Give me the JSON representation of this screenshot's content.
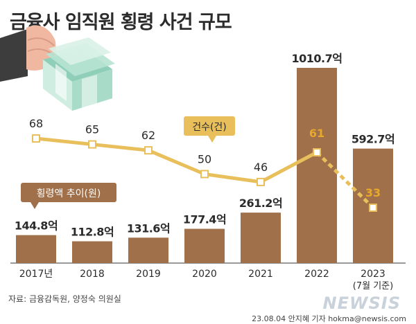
{
  "header": {
    "title": "금융사 임직원 횡령 사건 규모"
  },
  "footer": {
    "source": "자료: 금융감독원, 양정숙 의원실",
    "credit": "23.08.04 안지혜 기자 hokma@newsis.com",
    "watermark": "NEWSIS"
  },
  "colors": {
    "bar": "#a0704a",
    "line": "#e8bf5a",
    "highlight": "#e8a82a",
    "text": "#2b2b2b"
  },
  "chart_data": {
    "type": "bar",
    "categories": [
      "2017년",
      "2018",
      "2019",
      "2020",
      "2021",
      "2022",
      "2023"
    ],
    "category_sublabels": [
      "",
      "",
      "",
      "",
      "",
      "",
      "(7월 기준)"
    ],
    "series": [
      {
        "name": "횡령액 추이(원)",
        "values": [
          144.8,
          112.8,
          131.6,
          177.4,
          261.2,
          1010.7,
          592.7
        ],
        "labels": [
          "144.8억",
          "112.8억",
          "131.6억",
          "177.4억",
          "261.2억",
          "1010.7억",
          "592.7억"
        ]
      },
      {
        "name": "건수(건)",
        "type": "line",
        "values": [
          68,
          65,
          62,
          50,
          46,
          61,
          33
        ],
        "labels": [
          "68",
          "65",
          "62",
          "50",
          "46",
          "61",
          "33"
        ],
        "dashed_last_segment": true
      }
    ],
    "title": "금융사 임직원 횡령 사건 규모",
    "legend": [
      "횡령액 추이(원)",
      "건수(건)"
    ]
  }
}
